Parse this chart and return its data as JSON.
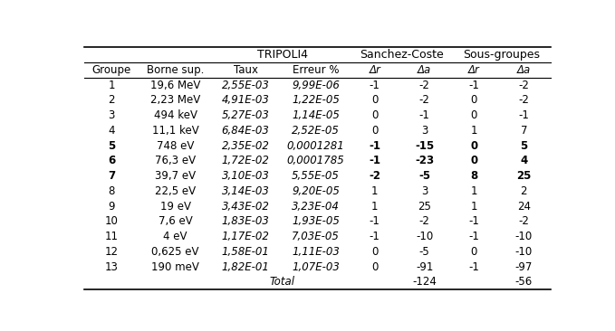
{
  "col_header_sub": [
    "Groupe",
    "Borne sup.",
    "Taux",
    "Erreur %",
    "Δr",
    "Δa",
    "Δr",
    "Δa"
  ],
  "rows": [
    [
      "1",
      "19,6 MeV",
      "2,55E-03",
      "9,99E-06",
      "-1",
      "-2",
      "-1",
      "-2"
    ],
    [
      "2",
      "2,23 MeV",
      "4,91E-03",
      "1,22E-05",
      "0",
      "-2",
      "0",
      "-2"
    ],
    [
      "3",
      "494 keV",
      "5,27E-03",
      "1,14E-05",
      "0",
      "-1",
      "0",
      "-1"
    ],
    [
      "4",
      "11,1 keV",
      "6,84E-03",
      "2,52E-05",
      "0",
      "3",
      "1",
      "7"
    ],
    [
      "5",
      "748 eV",
      "2,35E-02",
      "0,0001281",
      "-1",
      "-15",
      "0",
      "5"
    ],
    [
      "6",
      "76,3 eV",
      "1,72E-02",
      "0,0001785",
      "-1",
      "-23",
      "0",
      "4"
    ],
    [
      "7",
      "39,7 eV",
      "3,10E-03",
      "5,55E-05",
      "-2",
      "-5",
      "8",
      "25"
    ],
    [
      "8",
      "22,5 eV",
      "3,14E-03",
      "9,20E-05",
      "1",
      "3",
      "1",
      "2"
    ],
    [
      "9",
      "19 eV",
      "3,43E-02",
      "3,23E-04",
      "1",
      "25",
      "1",
      "24"
    ],
    [
      "10",
      "7,6 eV",
      "1,83E-03",
      "1,93E-05",
      "-1",
      "-2",
      "-1",
      "-2"
    ],
    [
      "11",
      "4 eV",
      "1,17E-02",
      "7,03E-05",
      "-1",
      "-10",
      "-1",
      "-10"
    ],
    [
      "12",
      "0,625 eV",
      "1,58E-01",
      "1,11E-03",
      "0",
      "-5",
      "0",
      "-10"
    ],
    [
      "13",
      "190 meV",
      "1,82E-01",
      "1,07E-03",
      "0",
      "-91",
      "-1",
      "-97"
    ]
  ],
  "bold_groups": [
    5,
    6,
    7
  ],
  "bold_cols_in_bold_rows": [
    4,
    5,
    6,
    7
  ],
  "total_sc": "-124",
  "total_sg": "-56",
  "figsize": [
    6.79,
    3.66
  ],
  "dpi": 100
}
